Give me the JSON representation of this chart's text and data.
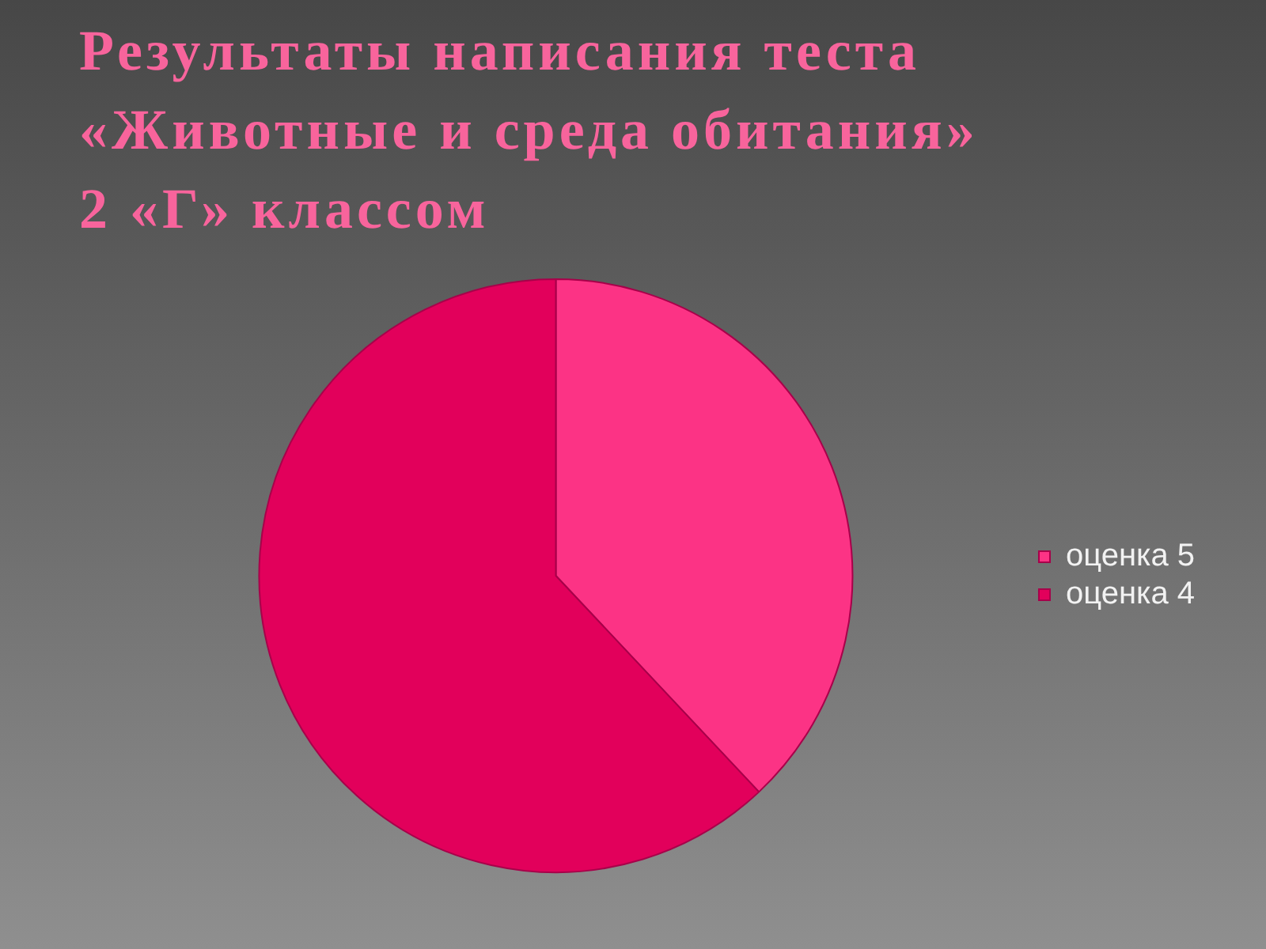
{
  "chart_data": {
    "type": "pie",
    "title": "Результаты написания теста\n«Животные и среда обитания»\n2 «Г» классом",
    "categories": [
      "оценка 5",
      "оценка 4"
    ],
    "values": [
      38,
      62
    ],
    "colors": [
      "#fc3385",
      "#e2005b"
    ],
    "legend": "right"
  }
}
